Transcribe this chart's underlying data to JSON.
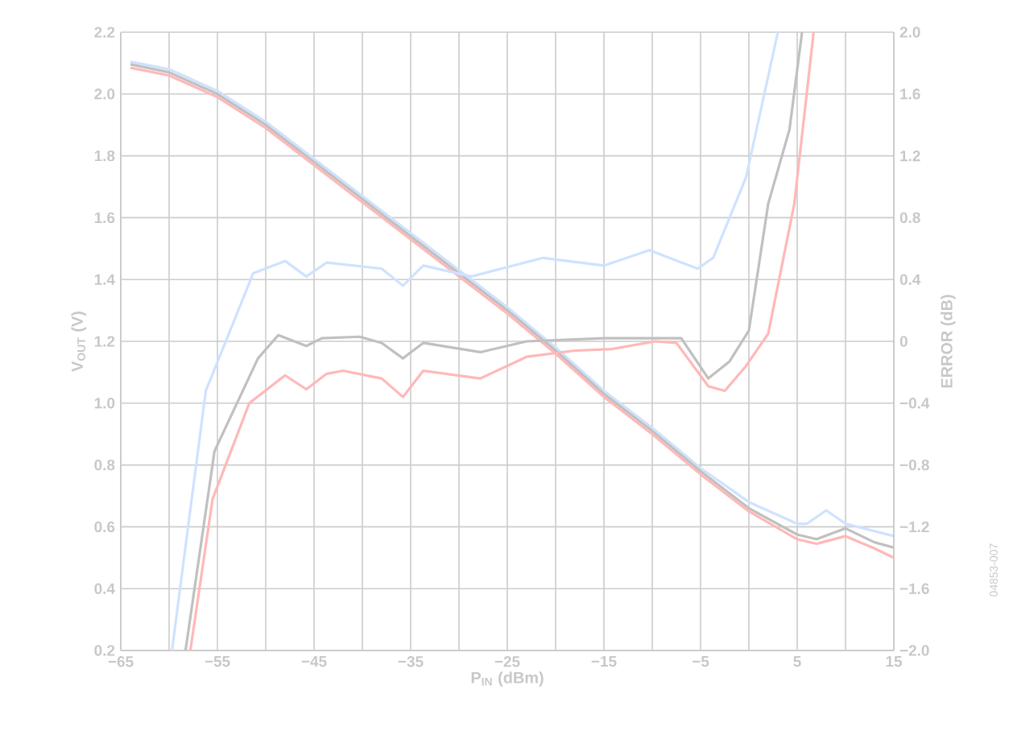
{
  "chart_data": {
    "type": "line",
    "xlabel": "P$_{IN}$ (dBm)",
    "ylabel": "V$_{OUT}$ (V)",
    "y2label": "ERROR (dB)",
    "annotations": [
      "04853-007"
    ],
    "xlim": [
      -65,
      15
    ],
    "ylim": [
      0.2,
      2.2
    ],
    "y2lim": [
      -2.0,
      2.0
    ],
    "xticks": [
      {
        "value": -65,
        "label": "−65"
      },
      {
        "value": -60,
        "label": null
      },
      {
        "value": -55,
        "label": "−55"
      },
      {
        "value": -50,
        "label": null
      },
      {
        "value": -45,
        "label": "−45"
      },
      {
        "value": -40,
        "label": null
      },
      {
        "value": -35,
        "label": "−35"
      },
      {
        "value": -30,
        "label": null
      },
      {
        "value": -25,
        "label": "−25"
      },
      {
        "value": -20,
        "label": null
      },
      {
        "value": -15,
        "label": "−15"
      },
      {
        "value": -10,
        "label": null
      },
      {
        "value": -5,
        "label": "−5"
      },
      {
        "value": 0,
        "label": null
      },
      {
        "value": 5,
        "label": "5"
      },
      {
        "value": 10,
        "label": null
      },
      {
        "value": 15,
        "label": "15"
      }
    ],
    "yticks": [
      {
        "value": 0.2,
        "label": "0.2"
      },
      {
        "value": 0.4,
        "label": "0.4"
      },
      {
        "value": 0.6,
        "label": "0.6"
      },
      {
        "value": 0.8,
        "label": "0.8"
      },
      {
        "value": 1.0,
        "label": "1.0"
      },
      {
        "value": 1.2,
        "label": "1.2"
      },
      {
        "value": 1.4,
        "label": "1.4"
      },
      {
        "value": 1.6,
        "label": "1.6"
      },
      {
        "value": 1.8,
        "label": "1.8"
      },
      {
        "value": 2.0,
        "label": "2.0"
      },
      {
        "value": 2.2,
        "label": "2.2"
      }
    ],
    "y2ticks": [
      {
        "value": -2.0,
        "label": "−2.0"
      },
      {
        "value": -1.6,
        "label": "−1.6"
      },
      {
        "value": -1.2,
        "label": "−1.2"
      },
      {
        "value": -0.8,
        "label": "−0.8"
      },
      {
        "value": -0.4,
        "label": "−0.4"
      },
      {
        "value": 0,
        "label": "0"
      },
      {
        "value": 0.4,
        "label": "0.4"
      },
      {
        "value": 0.8,
        "label": "0.8"
      },
      {
        "value": 1.2,
        "label": "1.2"
      },
      {
        "value": 1.6,
        "label": "1.6"
      },
      {
        "value": 2.0,
        "label": "2.0"
      }
    ],
    "grid": true,
    "series": [
      {
        "color": "#cfe2ff",
        "x": [
          -64,
          -60,
          -55,
          -50,
          -45,
          -40,
          -35,
          -30,
          -25,
          -20,
          -15,
          -10,
          -5,
          0,
          5,
          6,
          8,
          10,
          15
        ],
        "values": [
          2.105,
          2.08,
          2.01,
          1.91,
          1.79,
          1.67,
          1.55,
          1.43,
          1.31,
          1.18,
          1.04,
          0.92,
          0.79,
          0.68,
          0.61,
          0.61,
          0.653,
          0.61,
          0.57
        ]
      },
      {
        "color": "#c0c0c0",
        "x": [
          -64,
          -60,
          -55,
          -50,
          -45,
          -40,
          -35,
          -30,
          -25,
          -20,
          -15,
          -10,
          -5,
          0,
          5,
          7,
          10,
          13,
          15
        ],
        "values": [
          2.096,
          2.07,
          2.0,
          1.9,
          1.78,
          1.66,
          1.54,
          1.42,
          1.3,
          1.17,
          1.03,
          0.91,
          0.78,
          0.66,
          0.575,
          0.56,
          0.595,
          0.55,
          0.533
        ]
      },
      {
        "color": "#ffb8b8",
        "x": [
          -64,
          -60,
          -55,
          -50,
          -45,
          -40,
          -35,
          -30,
          -25,
          -20,
          -15,
          -10,
          -5,
          0,
          5,
          7,
          10,
          13,
          15
        ],
        "values": [
          2.085,
          2.06,
          1.99,
          1.89,
          1.77,
          1.65,
          1.53,
          1.41,
          1.29,
          1.16,
          1.02,
          0.9,
          0.77,
          0.65,
          0.56,
          0.545,
          0.57,
          0.53,
          0.5
        ]
      },
      {
        "color": "#cfe2ff",
        "axis": "y2",
        "x": [
          -59.7,
          -56.2,
          -51.3,
          -48,
          -45.8,
          -43.7,
          -38,
          -35.8,
          -33.7,
          -28.7,
          -21.3,
          -15,
          -10.3,
          -5.3,
          -3.7,
          -0.3,
          3
        ],
        "values": [
          -2.0,
          -0.32,
          0.44,
          0.52,
          0.42,
          0.51,
          0.47,
          0.36,
          0.49,
          0.42,
          0.54,
          0.49,
          0.59,
          0.47,
          0.54,
          1.06,
          2.0
        ]
      },
      {
        "color": "#c0c0c0",
        "axis": "y2",
        "x": [
          -58.3,
          -55.3,
          -50.8,
          -48.7,
          -45.8,
          -44.2,
          -40.3,
          -38,
          -35.8,
          -33.7,
          -27.8,
          -23,
          -15,
          -7,
          -4.2,
          -2,
          0,
          2,
          4.2,
          5.5
        ],
        "values": [
          -2.0,
          -0.71,
          -0.11,
          0.04,
          -0.03,
          0.02,
          0.03,
          -0.01,
          -0.11,
          -0.01,
          -0.07,
          0,
          0.02,
          0.02,
          -0.24,
          -0.13,
          0.07,
          0.89,
          1.37,
          2.0
        ]
      },
      {
        "color": "#ffb8b8",
        "axis": "y2",
        "x": [
          -57.8,
          -55.5,
          -51.7,
          -48,
          -45.8,
          -43.7,
          -42,
          -38,
          -35.8,
          -33.7,
          -27.8,
          -23,
          -18,
          -14.2,
          -9.7,
          -7.5,
          -4.2,
          -2.5,
          -0.3,
          2,
          4.7,
          6.7
        ],
        "values": [
          -2.0,
          -1.02,
          -0.4,
          -0.22,
          -0.31,
          -0.21,
          -0.19,
          -0.24,
          -0.36,
          -0.19,
          -0.24,
          -0.1,
          -0.06,
          -0.05,
          0,
          -0.01,
          -0.29,
          -0.32,
          -0.16,
          0.05,
          0.89,
          2.0
        ]
      }
    ]
  }
}
